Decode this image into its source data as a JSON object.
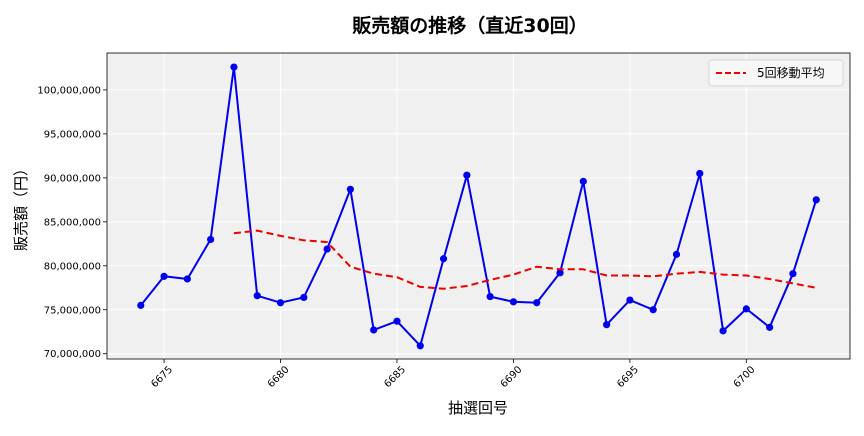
{
  "chart_data": {
    "type": "line",
    "title": "販売額の推移（直近30回）",
    "xlabel": "抽選回号",
    "ylabel": "販売額（円）",
    "xlim": [
      6672.55,
      6704.45
    ],
    "ylim": [
      69400000,
      104200000
    ],
    "x_ticks": [
      6675,
      6680,
      6685,
      6690,
      6695,
      6700
    ],
    "y_ticks": [
      70000000,
      75000000,
      80000000,
      85000000,
      90000000,
      95000000,
      100000000
    ],
    "y_tick_labels": [
      "70,000,000",
      "75,000,000",
      "80,000,000",
      "85,000,000",
      "90,000,000",
      "95,000,000",
      "100,000,000"
    ],
    "grid": true,
    "legend_position": "top-right",
    "series": [
      {
        "name": "",
        "style": "solid-with-markers",
        "color": "#0000ee",
        "x": [
          6674,
          6675,
          6676,
          6677,
          6678,
          6679,
          6680,
          6681,
          6682,
          6683,
          6684,
          6685,
          6686,
          6687,
          6688,
          6689,
          6690,
          6691,
          6692,
          6693,
          6694,
          6695,
          6696,
          6697,
          6698,
          6699,
          6700,
          6701,
          6702,
          6703
        ],
        "values": [
          75500000,
          78800000,
          78500000,
          83000000,
          102600000,
          76600000,
          75800000,
          76400000,
          81900000,
          88700000,
          72700000,
          73700000,
          70900000,
          80800000,
          90300000,
          76500000,
          75900000,
          75800000,
          79200000,
          89600000,
          73300000,
          76100000,
          75000000,
          81300000,
          90500000,
          72600000,
          75100000,
          73000000,
          79100000,
          87500000
        ]
      },
      {
        "name": "5回移動平均",
        "style": "dashed",
        "color": "#ee0000",
        "x": [
          6678,
          6679,
          6680,
          6681,
          6682,
          6683,
          6684,
          6685,
          6686,
          6687,
          6688,
          6689,
          6690,
          6691,
          6692,
          6693,
          6694,
          6695,
          6696,
          6697,
          6698,
          6699,
          6700,
          6701,
          6702,
          6703
        ],
        "values": [
          83700000,
          84000000,
          83400000,
          82900000,
          82700000,
          79900000,
          79100000,
          78700000,
          77600000,
          77400000,
          77700000,
          78400000,
          79000000,
          79900000,
          79600000,
          79600000,
          78900000,
          78900000,
          78800000,
          79100000,
          79300000,
          79000000,
          78900000,
          78500000,
          78000000,
          77500000
        ]
      }
    ]
  }
}
